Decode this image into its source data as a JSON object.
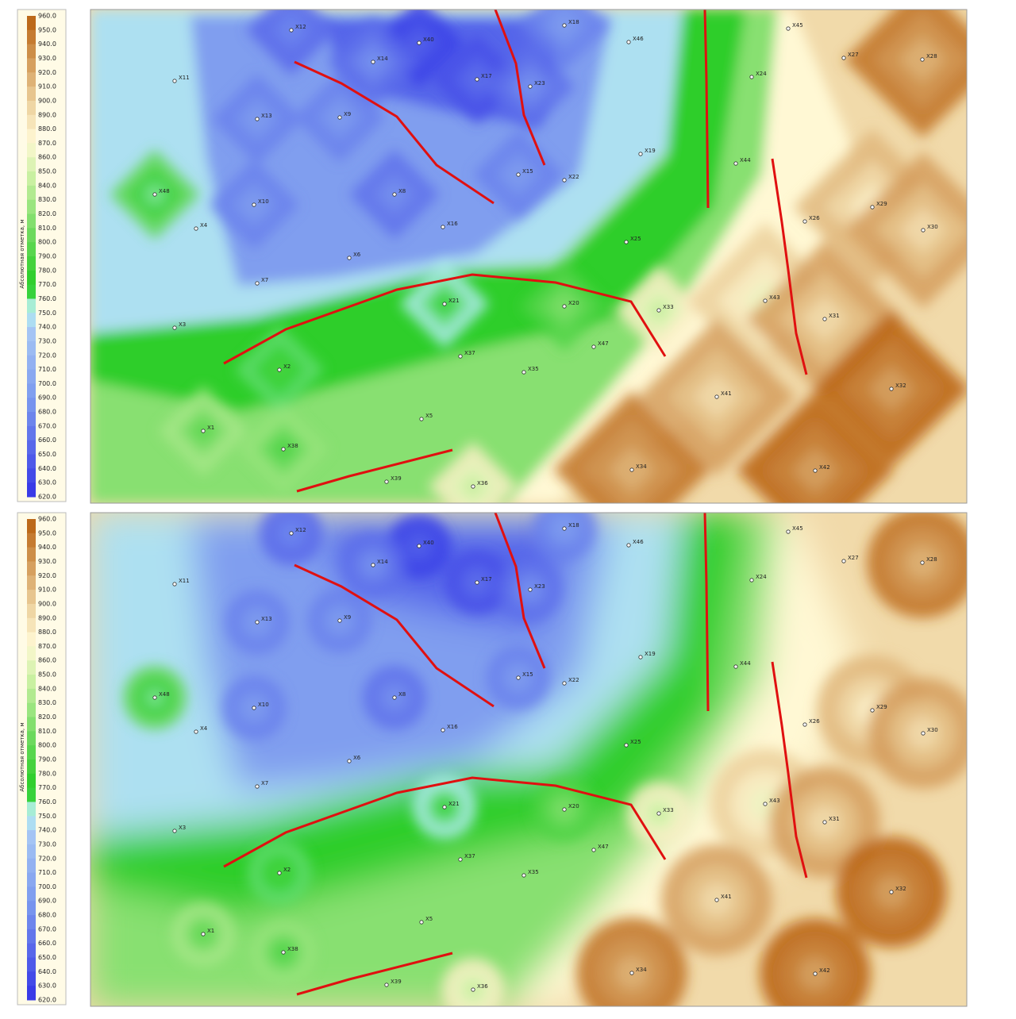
{
  "legend": {
    "title": "Абсолютная отметка, м",
    "labels": [
      "960.0",
      "950.0",
      "940.0",
      "930.0",
      "920.0",
      "910.0",
      "900.0",
      "890.0",
      "880.0",
      "870.0",
      "860.0",
      "850.0",
      "840.0",
      "830.0",
      "820.0",
      "810.0",
      "800.0",
      "790.0",
      "780.0",
      "770.0",
      "760.0",
      "750.0",
      "740.0",
      "730.0",
      "720.0",
      "710.0",
      "700.0",
      "690.0",
      "680.0",
      "670.0",
      "660.0",
      "650.0",
      "640.0",
      "630.0",
      "620.0"
    ]
  },
  "wells": [
    "X12",
    "X40",
    "X18",
    "X46",
    "X45",
    "X11",
    "X14",
    "X17",
    "X23",
    "X24",
    "X27",
    "X28",
    "X13",
    "X9",
    "X19",
    "X44",
    "X48",
    "X10",
    "X8",
    "X15",
    "X22",
    "X29",
    "X26",
    "X30",
    "X4",
    "X16",
    "X25",
    "X6",
    "X7",
    "X21",
    "X20",
    "X33",
    "X43",
    "X31",
    "X3",
    "X37",
    "X47",
    "X2",
    "X35",
    "X41",
    "X32",
    "X1",
    "X5",
    "X38",
    "X34",
    "X42",
    "X39",
    "X36"
  ]
}
